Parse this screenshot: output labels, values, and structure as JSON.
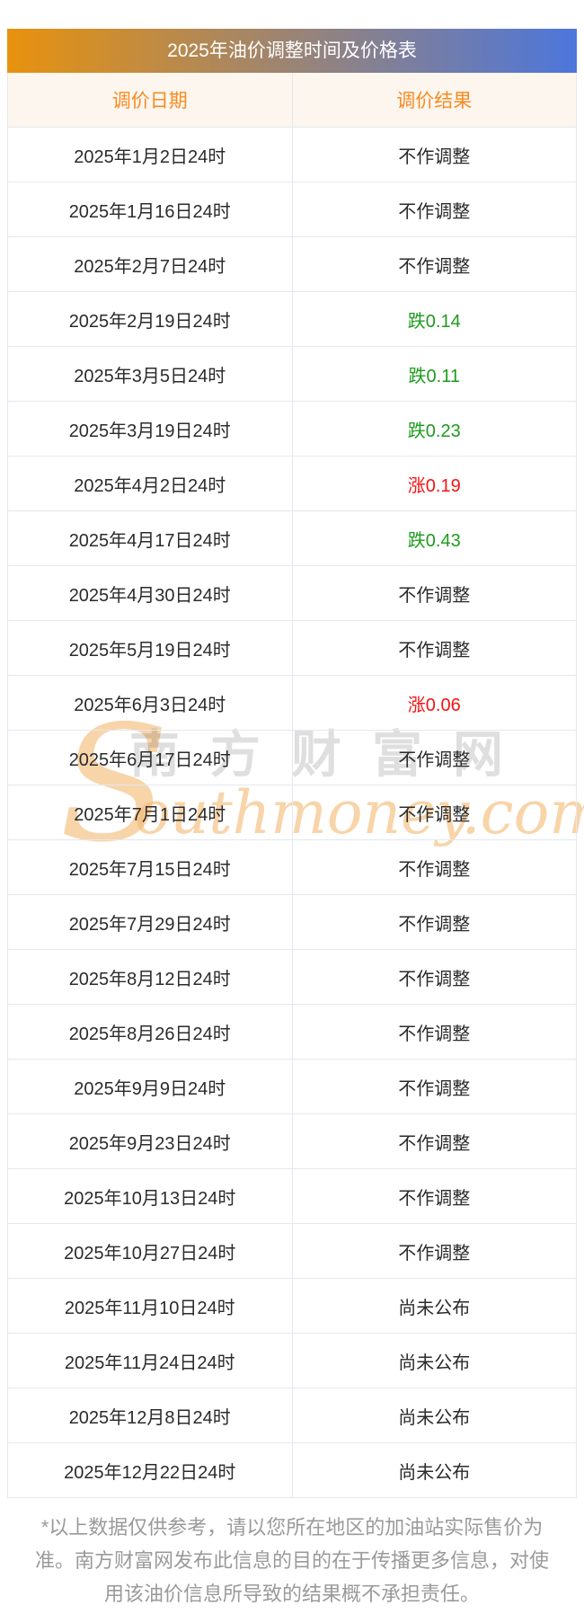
{
  "page": {
    "watermark": {
      "initial": "S",
      "cn": "南方财富网",
      "en": "outhmoney.com"
    },
    "footer_note": "*以上数据仅供参考，请以您所在地区的加油站实际售价为准。南方财富网发布此信息的目的在于传播更多信息，对使用该油价信息所导致的结果概不承担责任。",
    "colors": {
      "gradient-left": "#E8920D",
      "gradient-right": "#4D76DC",
      "header-bg": "#FDF6EE",
      "header-text": "#F68B22",
      "row-border": "#E4E8EE",
      "text-dark": "#2B2B2B",
      "rise-red": "#F41212",
      "fall-green": "#1E9B1E",
      "footer-gray": "#9A9A9A",
      "watermark-orange": "rgba(243,184,112,0.6)",
      "watermark-gray": "rgba(80,80,80,0.18)"
    }
  },
  "chart_data": {
    "type": "table",
    "title": "2025年油价调整时间及价格表",
    "columns": [
      "调价日期",
      "调价结果"
    ],
    "rows": [
      {
        "date": "2025年1月2日24时",
        "result": "不作调整",
        "trend": "none"
      },
      {
        "date": "2025年1月16日24时",
        "result": "不作调整",
        "trend": "none"
      },
      {
        "date": "2025年2月7日24时",
        "result": "不作调整",
        "trend": "none"
      },
      {
        "date": "2025年2月19日24时",
        "result": "跌0.14",
        "trend": "down"
      },
      {
        "date": "2025年3月5日24时",
        "result": "跌0.11",
        "trend": "down"
      },
      {
        "date": "2025年3月19日24时",
        "result": "跌0.23",
        "trend": "down"
      },
      {
        "date": "2025年4月2日24时",
        "result": "涨0.19",
        "trend": "up"
      },
      {
        "date": "2025年4月17日24时",
        "result": "跌0.43",
        "trend": "down"
      },
      {
        "date": "2025年4月30日24时",
        "result": "不作调整",
        "trend": "none"
      },
      {
        "date": "2025年5月19日24时",
        "result": "不作调整",
        "trend": "none"
      },
      {
        "date": "2025年6月3日24时",
        "result": "涨0.06",
        "trend": "up"
      },
      {
        "date": "2025年6月17日24时",
        "result": "不作调整",
        "trend": "none"
      },
      {
        "date": "2025年7月1日24时",
        "result": "不作调整",
        "trend": "none"
      },
      {
        "date": "2025年7月15日24时",
        "result": "不作调整",
        "trend": "none"
      },
      {
        "date": "2025年7月29日24时",
        "result": "不作调整",
        "trend": "none"
      },
      {
        "date": "2025年8月12日24时",
        "result": "不作调整",
        "trend": "none"
      },
      {
        "date": "2025年8月26日24时",
        "result": "不作调整",
        "trend": "none"
      },
      {
        "date": "2025年9月9日24时",
        "result": "不作调整",
        "trend": "none"
      },
      {
        "date": "2025年9月23日24时",
        "result": "不作调整",
        "trend": "none"
      },
      {
        "date": "2025年10月13日24时",
        "result": "不作调整",
        "trend": "none"
      },
      {
        "date": "2025年10月27日24时",
        "result": "不作调整",
        "trend": "none"
      },
      {
        "date": "2025年11月10日24时",
        "result": "尚未公布",
        "trend": "pending"
      },
      {
        "date": "2025年11月24日24时",
        "result": "尚未公布",
        "trend": "pending"
      },
      {
        "date": "2025年12月8日24时",
        "result": "尚未公布",
        "trend": "pending"
      },
      {
        "date": "2025年12月22日24时",
        "result": "尚未公布",
        "trend": "pending"
      }
    ]
  }
}
